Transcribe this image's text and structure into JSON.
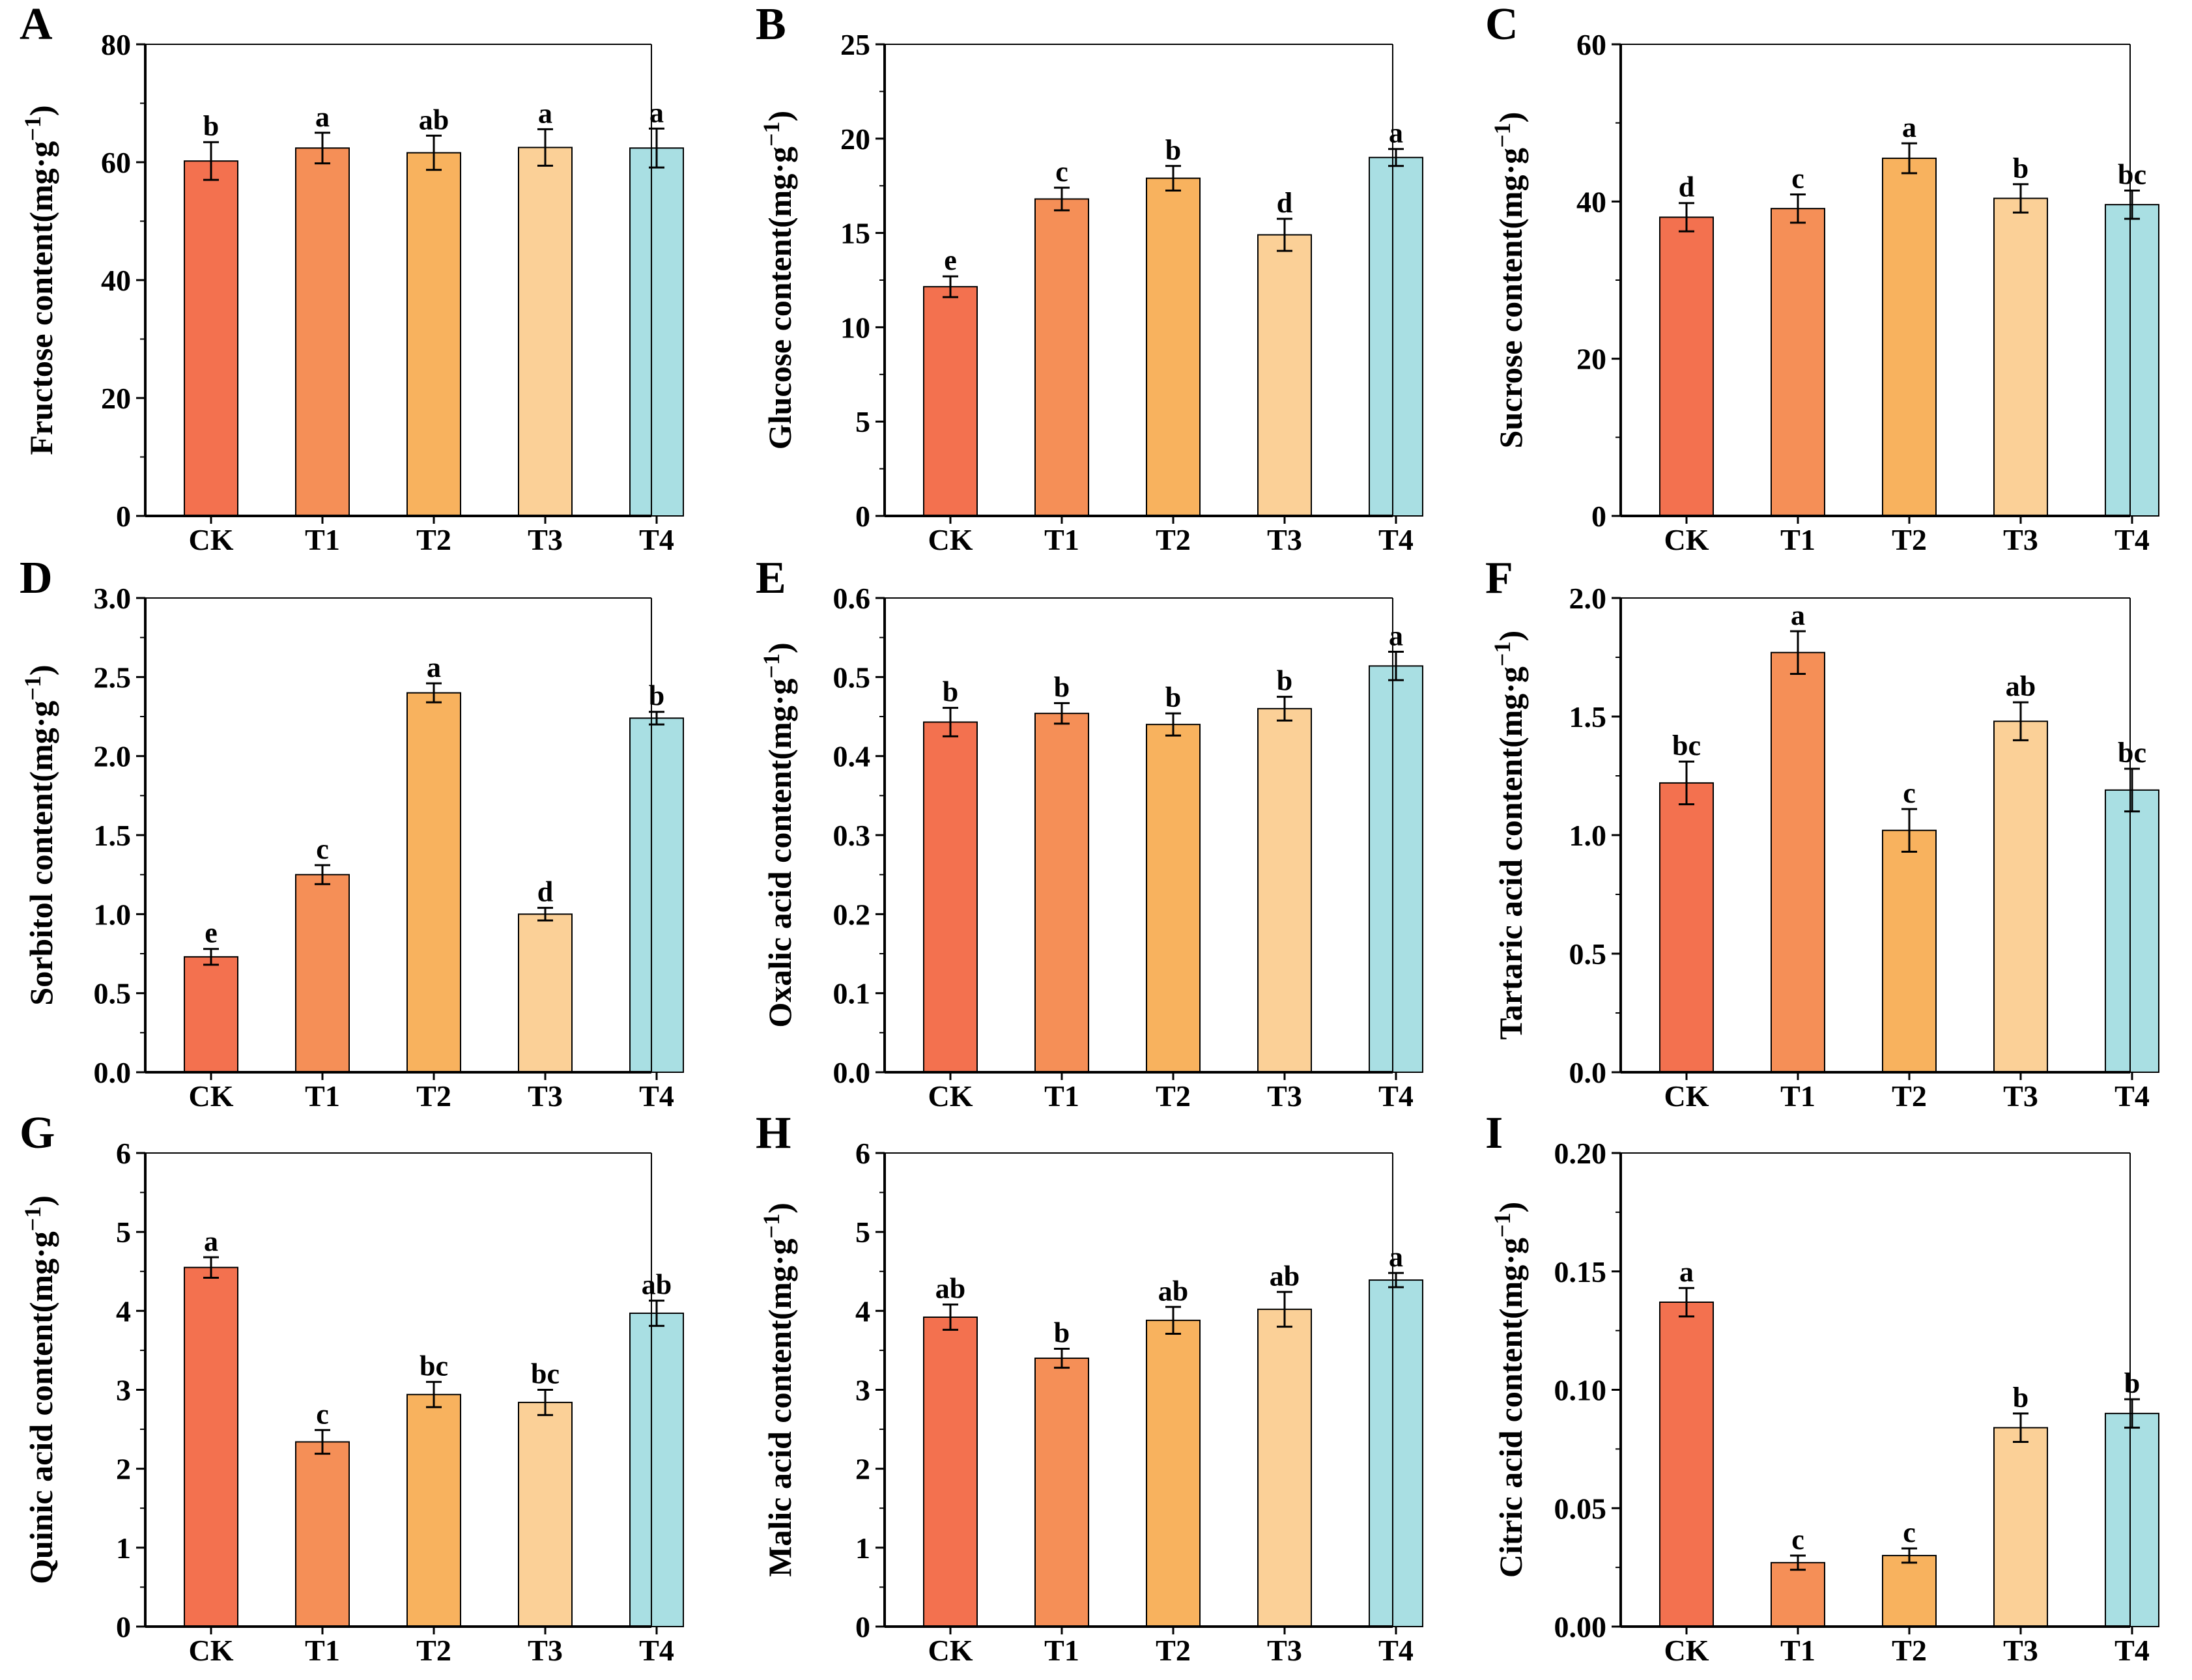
{
  "figure": {
    "categories": [
      "CK",
      "T1",
      "T2",
      "T3",
      "T4"
    ],
    "colors": [
      "#F3714F",
      "#F58F57",
      "#F8B25E",
      "#FBD097",
      "#A9DFE3"
    ],
    "panels": [
      {
        "letter": "A",
        "type": "bar",
        "ylabel": "Fructose content(mg·g",
        "ylabel_sup": "−1",
        "ylabel_close": ")",
        "ylim": [
          0,
          80
        ],
        "yticks": [
          0,
          20,
          40,
          60,
          80
        ],
        "ytick_labels": [
          "0",
          "20",
          "40",
          "60",
          "80"
        ],
        "values": [
          60.2,
          62.4,
          61.6,
          62.5,
          62.4
        ],
        "errors": [
          3.2,
          2.6,
          2.9,
          3.1,
          3.3
        ],
        "sig": [
          "b",
          "a",
          "ab",
          "a",
          "a"
        ]
      },
      {
        "letter": "B",
        "type": "bar",
        "ylabel": "Glucose content(mg·g",
        "ylabel_sup": "−1",
        "ylabel_close": ")",
        "ylim": [
          0,
          25
        ],
        "yticks": [
          0,
          5,
          10,
          15,
          20,
          25
        ],
        "ytick_labels": [
          "0",
          "5",
          "10",
          "15",
          "20",
          "25"
        ],
        "values": [
          12.15,
          16.8,
          17.9,
          14.9,
          19.0
        ],
        "errors": [
          0.55,
          0.6,
          0.65,
          0.85,
          0.45
        ],
        "sig": [
          "e",
          "c",
          "b",
          "d",
          "a"
        ]
      },
      {
        "letter": "C",
        "type": "bar",
        "ylabel": "Sucrose content(mg·g",
        "ylabel_sup": "−1",
        "ylabel_close": ")",
        "ylim": [
          0,
          60
        ],
        "yticks": [
          0,
          20,
          40,
          60
        ],
        "ytick_labels": [
          "0",
          "20",
          "40",
          "60"
        ],
        "values": [
          38.0,
          39.1,
          45.5,
          40.4,
          39.6
        ],
        "errors": [
          1.8,
          1.8,
          1.9,
          1.8,
          1.8
        ],
        "sig": [
          "d",
          "c",
          "a",
          "b",
          "bc"
        ]
      },
      {
        "letter": "D",
        "type": "bar",
        "ylabel": "Sorbitol content(mg·g",
        "ylabel_sup": "−1",
        "ylabel_close": ")",
        "ylim": [
          0,
          3.0
        ],
        "yticks": [
          0,
          0.5,
          1.0,
          1.5,
          2.0,
          2.5,
          3.0
        ],
        "ytick_labels": [
          "0.0",
          "0.5",
          "1.0",
          "1.5",
          "2.0",
          "2.5",
          "3.0"
        ],
        "values": [
          0.73,
          1.25,
          2.4,
          1.0,
          2.24
        ],
        "errors": [
          0.05,
          0.06,
          0.06,
          0.04,
          0.04
        ],
        "sig": [
          "e",
          "c",
          "a",
          "d",
          "b"
        ]
      },
      {
        "letter": "E",
        "type": "bar",
        "ylabel": "Oxalic acid content(mg·g",
        "ylabel_sup": "−1",
        "ylabel_close": ")",
        "ylim": [
          0,
          0.6
        ],
        "yticks": [
          0,
          0.1,
          0.2,
          0.3,
          0.4,
          0.5,
          0.6
        ],
        "ytick_labels": [
          "0.0",
          "0.1",
          "0.2",
          "0.3",
          "0.4",
          "0.5",
          "0.6"
        ],
        "values": [
          0.443,
          0.454,
          0.44,
          0.46,
          0.514
        ],
        "errors": [
          0.018,
          0.013,
          0.014,
          0.015,
          0.018
        ],
        "sig": [
          "b",
          "b",
          "b",
          "b",
          "a"
        ]
      },
      {
        "letter": "F",
        "type": "bar",
        "ylabel": "Tartaric acid content(mg·g",
        "ylabel_sup": "−1",
        "ylabel_close": ")",
        "ylim": [
          0,
          2.0
        ],
        "yticks": [
          0,
          0.5,
          1.0,
          1.5,
          2.0
        ],
        "ytick_labels": [
          "0.0",
          "0.5",
          "1.0",
          "1.5",
          "2.0"
        ],
        "values": [
          1.22,
          1.77,
          1.02,
          1.48,
          1.19
        ],
        "errors": [
          0.09,
          0.09,
          0.09,
          0.08,
          0.09
        ],
        "sig": [
          "bc",
          "a",
          "c",
          "ab",
          "bc"
        ]
      },
      {
        "letter": "G",
        "type": "bar",
        "ylabel": "Quinic acid content(mg·g",
        "ylabel_sup": "−1",
        "ylabel_close": ")",
        "ylim": [
          0,
          6
        ],
        "yticks": [
          0,
          1,
          2,
          3,
          4,
          5,
          6
        ],
        "ytick_labels": [
          "0",
          "1",
          "2",
          "3",
          "4",
          "5",
          "6"
        ],
        "values": [
          4.55,
          2.34,
          2.94,
          2.84,
          3.97
        ],
        "errors": [
          0.13,
          0.15,
          0.16,
          0.16,
          0.16
        ],
        "sig": [
          "a",
          "c",
          "bc",
          "bc",
          "ab"
        ]
      },
      {
        "letter": "H",
        "type": "bar",
        "ylabel": "Malic acid content(mg·g",
        "ylabel_sup": "−1",
        "ylabel_close": ")",
        "ylim": [
          0,
          6
        ],
        "yticks": [
          0,
          1,
          2,
          3,
          4,
          5,
          6
        ],
        "ytick_labels": [
          "0",
          "1",
          "2",
          "3",
          "4",
          "5",
          "6"
        ],
        "values": [
          3.92,
          3.4,
          3.88,
          4.02,
          4.39
        ],
        "errors": [
          0.16,
          0.12,
          0.17,
          0.22,
          0.09
        ],
        "sig": [
          "ab",
          "b",
          "ab",
          "ab",
          "a"
        ]
      },
      {
        "letter": "I",
        "type": "bar",
        "ylabel": "Citric acid content(mg·g",
        "ylabel_sup": "−1",
        "ylabel_close": ")",
        "ylim": [
          0,
          0.2
        ],
        "yticks": [
          0,
          0.05,
          0.1,
          0.15,
          0.2
        ],
        "ytick_labels": [
          "0.00",
          "0.05",
          "0.10",
          "0.15",
          "0.20"
        ],
        "values": [
          0.137,
          0.027,
          0.03,
          0.084,
          0.09
        ],
        "errors": [
          0.006,
          0.003,
          0.003,
          0.006,
          0.006
        ],
        "sig": [
          "a",
          "c",
          "c",
          "b",
          "b"
        ]
      }
    ]
  },
  "chart_data": [
    {
      "type": "bar",
      "title": "A",
      "categories": [
        "CK",
        "T1",
        "T2",
        "T3",
        "T4"
      ],
      "values": [
        60.2,
        62.4,
        61.6,
        62.5,
        62.4
      ],
      "errors": [
        3.2,
        2.6,
        2.9,
        3.1,
        3.3
      ],
      "labels": [
        "b",
        "a",
        "ab",
        "a",
        "a"
      ],
      "xlabel": "",
      "ylabel": "Fructose content(mg·g−1)",
      "ylim": [
        0,
        80
      ]
    },
    {
      "type": "bar",
      "title": "B",
      "categories": [
        "CK",
        "T1",
        "T2",
        "T3",
        "T4"
      ],
      "values": [
        12.15,
        16.8,
        17.9,
        14.9,
        19.0
      ],
      "errors": [
        0.55,
        0.6,
        0.65,
        0.85,
        0.45
      ],
      "labels": [
        "e",
        "c",
        "b",
        "d",
        "a"
      ],
      "xlabel": "",
      "ylabel": "Glucose content(mg·g−1)",
      "ylim": [
        0,
        25
      ]
    },
    {
      "type": "bar",
      "title": "C",
      "categories": [
        "CK",
        "T1",
        "T2",
        "T3",
        "T4"
      ],
      "values": [
        38.0,
        39.1,
        45.5,
        40.4,
        39.6
      ],
      "errors": [
        1.8,
        1.8,
        1.9,
        1.8,
        1.8
      ],
      "labels": [
        "d",
        "c",
        "a",
        "b",
        "bc"
      ],
      "xlabel": "",
      "ylabel": "Sucrose content(mg·g−1)",
      "ylim": [
        0,
        60
      ]
    },
    {
      "type": "bar",
      "title": "D",
      "categories": [
        "CK",
        "T1",
        "T2",
        "T3",
        "T4"
      ],
      "values": [
        0.73,
        1.25,
        2.4,
        1.0,
        2.24
      ],
      "errors": [
        0.05,
        0.06,
        0.06,
        0.04,
        0.04
      ],
      "labels": [
        "e",
        "c",
        "a",
        "d",
        "b"
      ],
      "xlabel": "",
      "ylabel": "Sorbitol content(mg·g−1)",
      "ylim": [
        0,
        3.0
      ]
    },
    {
      "type": "bar",
      "title": "E",
      "categories": [
        "CK",
        "T1",
        "T2",
        "T3",
        "T4"
      ],
      "values": [
        0.443,
        0.454,
        0.44,
        0.46,
        0.514
      ],
      "errors": [
        0.018,
        0.013,
        0.014,
        0.015,
        0.018
      ],
      "labels": [
        "b",
        "b",
        "b",
        "b",
        "a"
      ],
      "xlabel": "",
      "ylabel": "Oxalic acid content(mg·g−1)",
      "ylim": [
        0,
        0.6
      ]
    },
    {
      "type": "bar",
      "title": "F",
      "categories": [
        "CK",
        "T1",
        "T2",
        "T3",
        "T4"
      ],
      "values": [
        1.22,
        1.77,
        1.02,
        1.48,
        1.19
      ],
      "errors": [
        0.09,
        0.09,
        0.09,
        0.08,
        0.09
      ],
      "labels": [
        "bc",
        "a",
        "c",
        "ab",
        "bc"
      ],
      "xlabel": "",
      "ylabel": "Tartaric acid content(mg·g−1)",
      "ylim": [
        0,
        2.0
      ]
    },
    {
      "type": "bar",
      "title": "G",
      "categories": [
        "CK",
        "T1",
        "T2",
        "T3",
        "T4"
      ],
      "values": [
        4.55,
        2.34,
        2.94,
        2.84,
        3.97
      ],
      "errors": [
        0.13,
        0.15,
        0.16,
        0.16,
        0.16
      ],
      "labels": [
        "a",
        "c",
        "bc",
        "bc",
        "ab"
      ],
      "xlabel": "",
      "ylabel": "Quinic acid content(mg·g−1)",
      "ylim": [
        0,
        6
      ]
    },
    {
      "type": "bar",
      "title": "H",
      "categories": [
        "CK",
        "T1",
        "T2",
        "T3",
        "T4"
      ],
      "values": [
        3.92,
        3.4,
        3.88,
        4.02,
        4.39
      ],
      "errors": [
        0.16,
        0.12,
        0.17,
        0.22,
        0.09
      ],
      "labels": [
        "ab",
        "b",
        "ab",
        "ab",
        "a"
      ],
      "xlabel": "",
      "ylabel": "Malic acid content(mg·g−1)",
      "ylim": [
        0,
        6
      ]
    },
    {
      "type": "bar",
      "title": "I",
      "categories": [
        "CK",
        "T1",
        "T2",
        "T3",
        "T4"
      ],
      "values": [
        0.137,
        0.027,
        0.03,
        0.084,
        0.09
      ],
      "errors": [
        0.006,
        0.003,
        0.003,
        0.006,
        0.006
      ],
      "labels": [
        "a",
        "c",
        "c",
        "b",
        "b"
      ],
      "xlabel": "",
      "ylabel": "Citric acid content(mg·g−1)",
      "ylim": [
        0,
        0.2
      ]
    }
  ]
}
